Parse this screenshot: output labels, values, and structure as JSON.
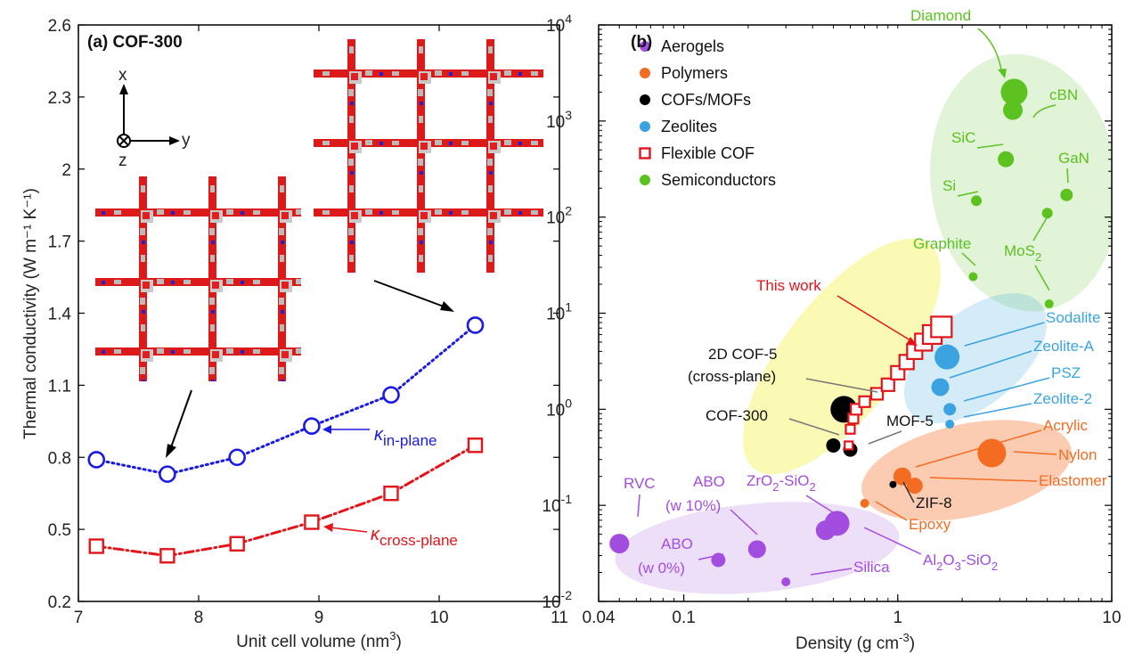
{
  "colors": {
    "aerogels": "#a24de0",
    "polymers": "#f36c22",
    "cofs_mofs": "#000000",
    "zeolites": "#3aa3e0",
    "flexible_cof": "#e3151a",
    "semiconductors": "#5cc21f",
    "in_plane": "#1a1ae6",
    "cross_plane": "#e3151a"
  },
  "chart_data": [
    {
      "type": "line",
      "panel_label": "(a) COF-300",
      "xlabel_main": "Unit cell volume (nm",
      "xlabel_sup": "3",
      "xlabel_end": ")",
      "ylabel": "Thermal conductivity (W m⁻¹ K⁻¹)",
      "xlim": [
        7,
        11
      ],
      "ylim": [
        0.2,
        2.6
      ],
      "xticks": [
        "7",
        "8",
        "9",
        "10",
        "11"
      ],
      "yticks": [
        "0.2",
        "0.5",
        "0.8",
        "1.1",
        "1.4",
        "1.7",
        "2",
        "2.3",
        "2.6"
      ],
      "axis_labels": {
        "x": "x",
        "y": "y",
        "z": "z"
      },
      "x": [
        7.15,
        7.74,
        8.32,
        8.94,
        9.6,
        10.3
      ],
      "series": [
        {
          "key": "in_plane",
          "label_main": "κ",
          "label_sub": "in-plane",
          "marker": "circle",
          "values": [
            0.79,
            0.73,
            0.8,
            0.93,
            1.06,
            1.35
          ]
        },
        {
          "key": "cross_plane",
          "label_main": "κ",
          "label_sub": "cross-plane",
          "marker": "square",
          "values": [
            0.43,
            0.39,
            0.44,
            0.53,
            0.65,
            0.85
          ]
        }
      ]
    },
    {
      "type": "scatter",
      "panel_label": "(b)",
      "xscale": "log",
      "yscale": "log",
      "xlabel_main": "Density (g cm",
      "xlabel_sup": "-3",
      "xlabel_end": ")",
      "xlim": [
        0.04,
        10
      ],
      "ylim": [
        0.01,
        10000
      ],
      "xticks": [
        {
          "v": 0.04,
          "t": "0.04"
        },
        {
          "v": 0.1,
          "t": "0.1"
        },
        {
          "v": 1,
          "t": "1"
        },
        {
          "v": 10,
          "t": "10"
        }
      ],
      "yticks": [
        {
          "v": 0.01,
          "exp": "-2"
        },
        {
          "v": 0.1,
          "exp": "-1"
        },
        {
          "v": 1,
          "exp": "0"
        },
        {
          "v": 10,
          "exp": "1"
        },
        {
          "v": 100,
          "exp": "2"
        },
        {
          "v": 1000,
          "exp": "3"
        },
        {
          "v": 10000,
          "exp": "4"
        }
      ],
      "ytick_base": "10",
      "legend": [
        {
          "key": "aerogels",
          "label": "Aerogels",
          "marker": "circle"
        },
        {
          "key": "polymers",
          "label": "Polymers",
          "marker": "circle"
        },
        {
          "key": "cofs_mofs",
          "label": "COFs/MOFs",
          "marker": "circle"
        },
        {
          "key": "zeolites",
          "label": "Zeolites",
          "marker": "circle"
        },
        {
          "key": "flexible_cof",
          "label": "Flexible COF",
          "marker": "square"
        },
        {
          "key": "semiconductors",
          "label": "Semiconductors",
          "marker": "circle"
        }
      ],
      "points": [
        {
          "group": "semiconductors",
          "x": 3.5,
          "y": 2000,
          "r": 15
        },
        {
          "group": "semiconductors",
          "x": 3.45,
          "y": 1300,
          "r": 11
        },
        {
          "group": "semiconductors",
          "x": 3.2,
          "y": 400,
          "r": 9
        },
        {
          "group": "semiconductors",
          "x": 2.33,
          "y": 148,
          "r": 6
        },
        {
          "group": "semiconductors",
          "x": 6.15,
          "y": 170,
          "r": 7
        },
        {
          "group": "semiconductors",
          "x": 5.0,
          "y": 110,
          "r": 6
        },
        {
          "group": "semiconductors",
          "x": 2.25,
          "y": 24,
          "r": 5
        },
        {
          "group": "semiconductors",
          "x": 5.1,
          "y": 12.5,
          "r": 5
        },
        {
          "group": "zeolites",
          "x": 1.7,
          "y": 3.5,
          "r": 14
        },
        {
          "group": "zeolites",
          "x": 1.58,
          "y": 1.7,
          "r": 10
        },
        {
          "group": "zeolites",
          "x": 1.75,
          "y": 1.0,
          "r": 7
        },
        {
          "group": "zeolites",
          "x": 1.75,
          "y": 0.7,
          "r": 5
        },
        {
          "group": "polymers",
          "x": 2.75,
          "y": 0.35,
          "r": 16
        },
        {
          "group": "polymers",
          "x": 1.05,
          "y": 0.2,
          "r": 10
        },
        {
          "group": "polymers",
          "x": 1.2,
          "y": 0.16,
          "r": 9
        },
        {
          "group": "polymers",
          "x": 0.7,
          "y": 0.105,
          "r": 5
        },
        {
          "group": "cofs_mofs",
          "x": 0.56,
          "y": 1.0,
          "r": 15
        },
        {
          "group": "cofs_mofs",
          "x": 0.5,
          "y": 0.42,
          "r": 8
        },
        {
          "group": "cofs_mofs",
          "x": 0.6,
          "y": 0.38,
          "r": 8
        },
        {
          "group": "cofs_mofs",
          "x": 0.95,
          "y": 0.165,
          "r": 4
        },
        {
          "group": "aerogels",
          "x": 0.05,
          "y": 0.04,
          "r": 11
        },
        {
          "group": "aerogels",
          "x": 0.145,
          "y": 0.027,
          "r": 8
        },
        {
          "group": "aerogels",
          "x": 0.22,
          "y": 0.035,
          "r": 10
        },
        {
          "group": "aerogels",
          "x": 0.52,
          "y": 0.065,
          "r": 14
        },
        {
          "group": "aerogels",
          "x": 0.46,
          "y": 0.055,
          "r": 11
        },
        {
          "group": "aerogels",
          "x": 0.3,
          "y": 0.016,
          "r": 5
        }
      ],
      "flexible_cof": [
        {
          "x": 0.59,
          "y": 0.42,
          "s": 9
        },
        {
          "x": 0.6,
          "y": 0.62,
          "s": 10
        },
        {
          "x": 0.62,
          "y": 0.8,
          "s": 11
        },
        {
          "x": 0.64,
          "y": 1.0,
          "s": 12
        },
        {
          "x": 0.7,
          "y": 1.2,
          "s": 12
        },
        {
          "x": 0.8,
          "y": 1.45,
          "s": 13
        },
        {
          "x": 0.9,
          "y": 1.8,
          "s": 14
        },
        {
          "x": 1.0,
          "y": 2.4,
          "s": 15
        },
        {
          "x": 1.1,
          "y": 3.1,
          "s": 16
        },
        {
          "x": 1.2,
          "y": 4.0,
          "s": 17
        },
        {
          "x": 1.32,
          "y": 5.0,
          "s": 19
        },
        {
          "x": 1.45,
          "y": 6.0,
          "s": 21
        },
        {
          "x": 1.6,
          "y": 7.2,
          "s": 23
        }
      ],
      "labels": {
        "diamond": "Diamond",
        "cbn": "cBN",
        "sic": "SiC",
        "gan": "GaN",
        "si": "Si",
        "graphite": "Graphite",
        "mos_main": "MoS",
        "mos_sub": "2",
        "this_work": "This work",
        "sodalite": "Sodalite",
        "zeolite_a": "Zeolite-A",
        "psz": "PSZ",
        "zeolite_2": "Zeolite-2",
        "acrylic": "Acrylic",
        "nylon": "Nylon",
        "elastomer": "Elastomer",
        "zif8": "ZIF-8",
        "epoxy": "Epoxy",
        "cof5_line1": "2D COF-5",
        "cof5_line2": "(cross-plane)",
        "cof300": "COF-300",
        "mof5": "MOF-5",
        "rvc": "RVC",
        "abo10_line1": "ABO",
        "abo10_line2": "(w 10%)",
        "abo0_line1": "ABO",
        "abo0_line2": "(w 0%)",
        "zro2_a": "ZrO",
        "zro2_b": "2",
        "zro2_c": "-SiO",
        "zro2_d": "2",
        "al2o3_a": "Al",
        "al2o3_b": "2",
        "al2o3_c": "O",
        "al2o3_d": "3",
        "al2o3_e": "-SiO",
        "al2o3_f": "2",
        "silica": "Silica"
      }
    }
  ]
}
